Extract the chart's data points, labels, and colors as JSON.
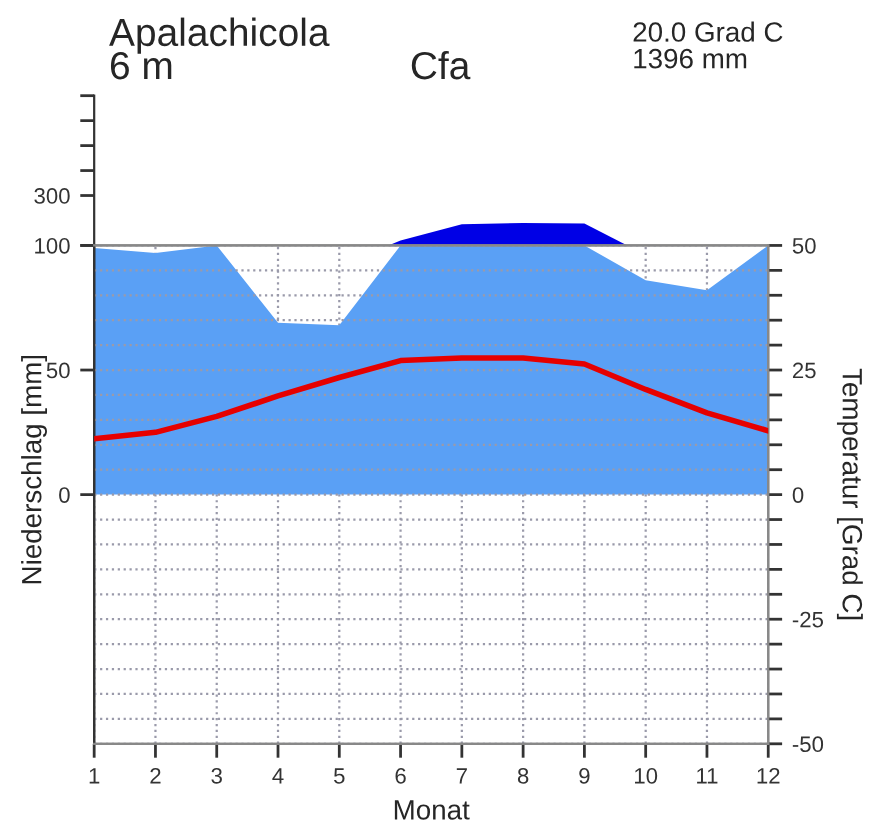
{
  "chart_data": [
    {
      "type": "area",
      "title": "Apalachicola",
      "annotations": [
        "6 m",
        "Cfa",
        "20.0 Grad C",
        "1396 mm"
      ],
      "xlim": [
        1,
        12
      ],
      "tick_labels": "y",
      "ylim": [
        100,
        700
      ],
      "yticks": [
        100,
        300,
        {
          "value": 400,
          "label": null
        },
        {
          "value": 500,
          "label": null
        },
        {
          "value": 600,
          "label": null
        },
        {
          "value": 700,
          "label": null
        }
      ],
      "series": [
        {
          "color": "#0000e6",
          "x": [
            5.8,
            6,
            7,
            8,
            9,
            9.7
          ],
          "values": [
            100,
            120,
            185,
            190,
            188,
            100
          ]
        }
      ]
    },
    {
      "type": "area",
      "xlabel": "Monat",
      "ylabel": "Niederschlag [mm]",
      "y2label": "Temperatur [Grad C]",
      "x": [
        1,
        2,
        3,
        4,
        5,
        6,
        7,
        8,
        9,
        10,
        11,
        12
      ],
      "xlim": [
        1,
        12
      ],
      "xticks": [
        1,
        2,
        3,
        4,
        5,
        6,
        7,
        8,
        9,
        10,
        11,
        12
      ],
      "ylim": [
        -100,
        100
      ],
      "yticks": [
        0,
        50,
        {
          "value": 100,
          "label": null
        }
      ],
      "y2lim": [
        -50,
        50
      ],
      "y2ticks": [
        -50,
        {
          "value": -45,
          "label": null
        },
        {
          "value": -40,
          "label": null
        },
        {
          "value": -35,
          "label": null
        },
        {
          "value": -30,
          "label": null
        },
        -25,
        {
          "value": -20,
          "label": null
        },
        {
          "value": -15,
          "label": null
        },
        {
          "value": -10,
          "label": null
        },
        {
          "value": -5,
          "label": null
        },
        0,
        {
          "value": 5,
          "label": null
        },
        {
          "value": 10,
          "label": null
        },
        {
          "value": 15,
          "label": null
        },
        {
          "value": 20,
          "label": null
        },
        25,
        {
          "value": 30,
          "label": null
        },
        {
          "value": 35,
          "label": null
        },
        {
          "value": 40,
          "label": null
        },
        {
          "value": 45,
          "label": null
        },
        50
      ],
      "grid": true,
      "series": [
        {
          "color": "#5aa0f5",
          "values": [
            99,
            97,
            100,
            69,
            68,
            100,
            100,
            100,
            100,
            86,
            82,
            100
          ]
        },
        {
          "type": "line",
          "axis": "y2",
          "color": "#e60000",
          "line_style": "solid",
          "values": [
            11.2,
            12.5,
            15.7,
            19.8,
            23.5,
            26.9,
            27.4,
            27.4,
            26.2,
            21.1,
            16.4,
            12.8
          ]
        }
      ]
    }
  ]
}
